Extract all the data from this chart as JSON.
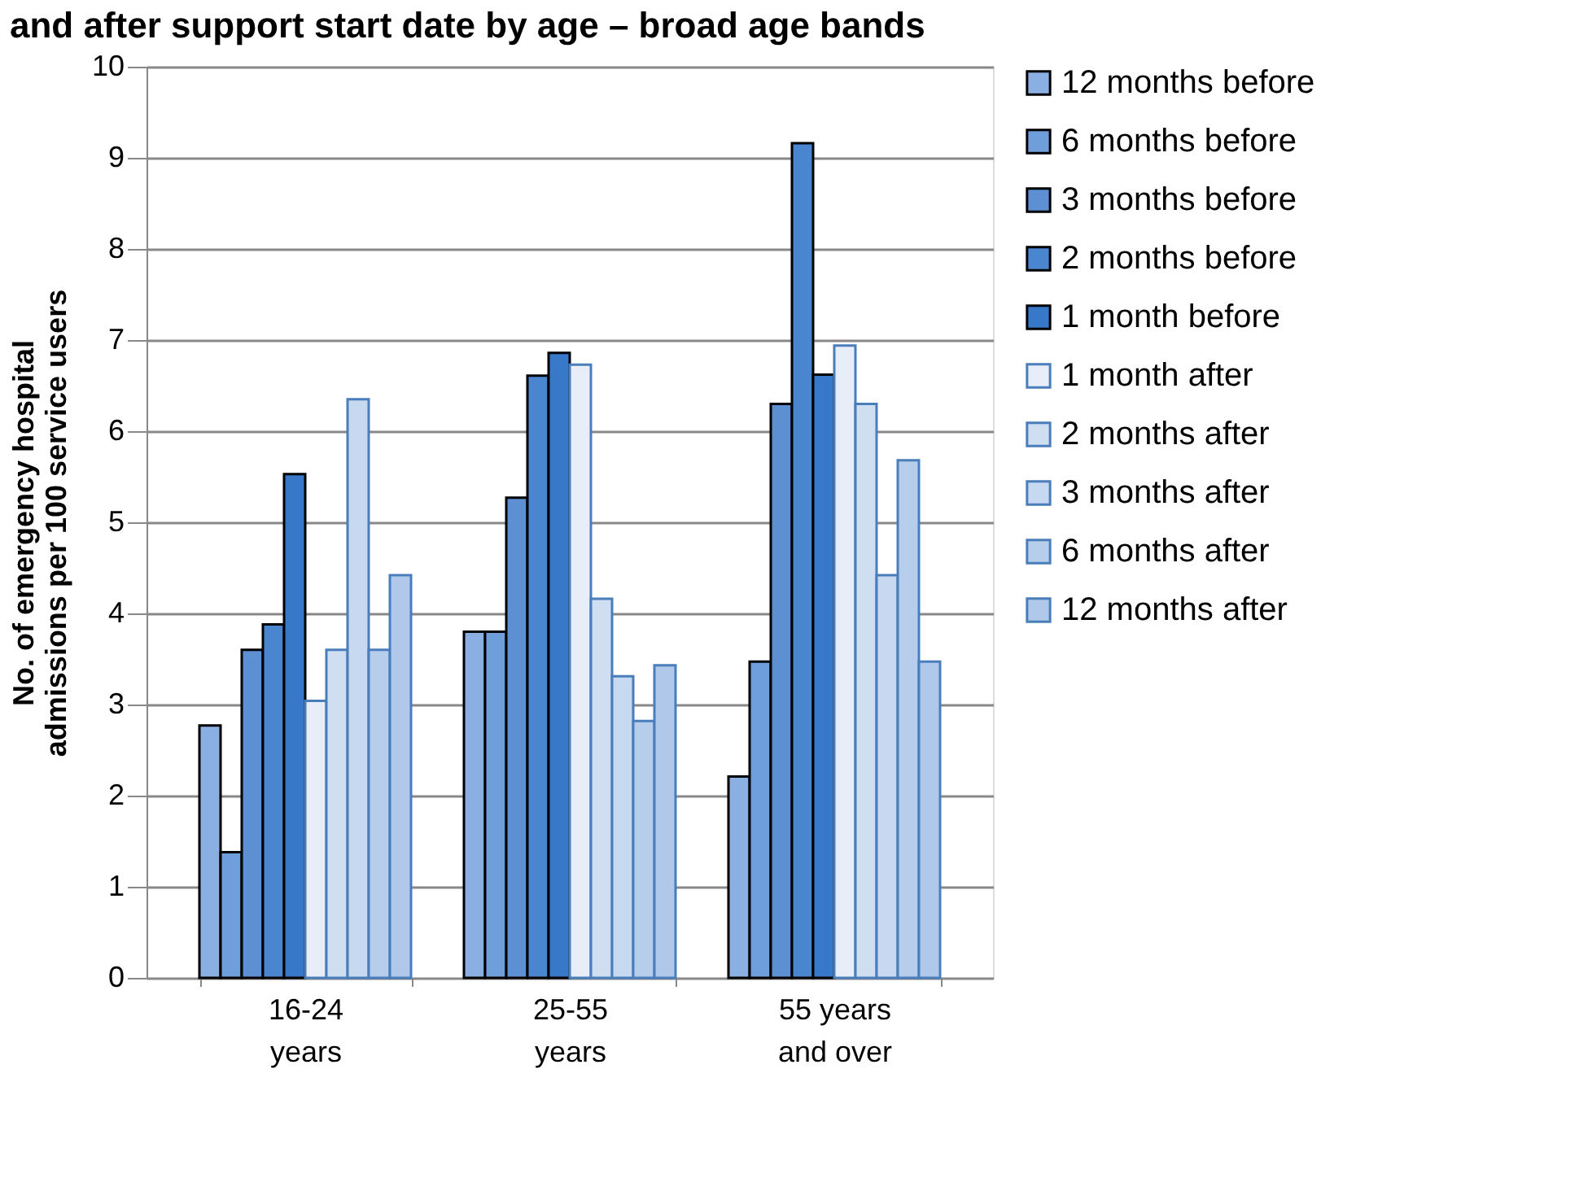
{
  "chart_data": {
    "type": "bar",
    "title": "and after support start date by age – broad age bands",
    "ylabel": "No. of emergency hospital admissions per 100 service users",
    "categories": [
      "16-24\nyears",
      "25-55\nyears",
      "55 years\nand over"
    ],
    "series": [
      {
        "name": "12 months before",
        "color": "#8ab0e3",
        "values": [
          2.77,
          3.8,
          2.21
        ]
      },
      {
        "name": "6 months before",
        "color": "#6f9fdb",
        "values": [
          1.38,
          3.8,
          3.47
        ]
      },
      {
        "name": "3 months before",
        "color": "#5d8fd3",
        "values": [
          3.6,
          5.27,
          6.3
        ]
      },
      {
        "name": "2 months before",
        "color": "#4a86cf",
        "values": [
          3.88,
          6.61,
          9.16
        ]
      },
      {
        "name": "1 month before",
        "color": "#3878c8",
        "values": [
          5.53,
          6.86,
          6.62
        ]
      },
      {
        "name": "1 month after",
        "color": "#e8eef8",
        "values": [
          3.04,
          6.73,
          6.94
        ]
      },
      {
        "name": "2 months after",
        "color": "#d0def2",
        "values": [
          3.6,
          4.16,
          6.3
        ]
      },
      {
        "name": "3 months after",
        "color": "#c6d9f1",
        "values": [
          6.35,
          3.31,
          4.42
        ]
      },
      {
        "name": "6 months after",
        "color": "#b7cdec",
        "values": [
          3.6,
          2.82,
          5.68
        ]
      },
      {
        "name": "12 months after",
        "color": "#b0c8ea",
        "values": [
          4.42,
          3.43,
          3.47
        ]
      }
    ],
    "ylim": [
      0,
      10
    ],
    "yticks": [
      0,
      1,
      2,
      3,
      4,
      5,
      6,
      7,
      8,
      9,
      10
    ],
    "grid": "y",
    "legend": "right"
  }
}
